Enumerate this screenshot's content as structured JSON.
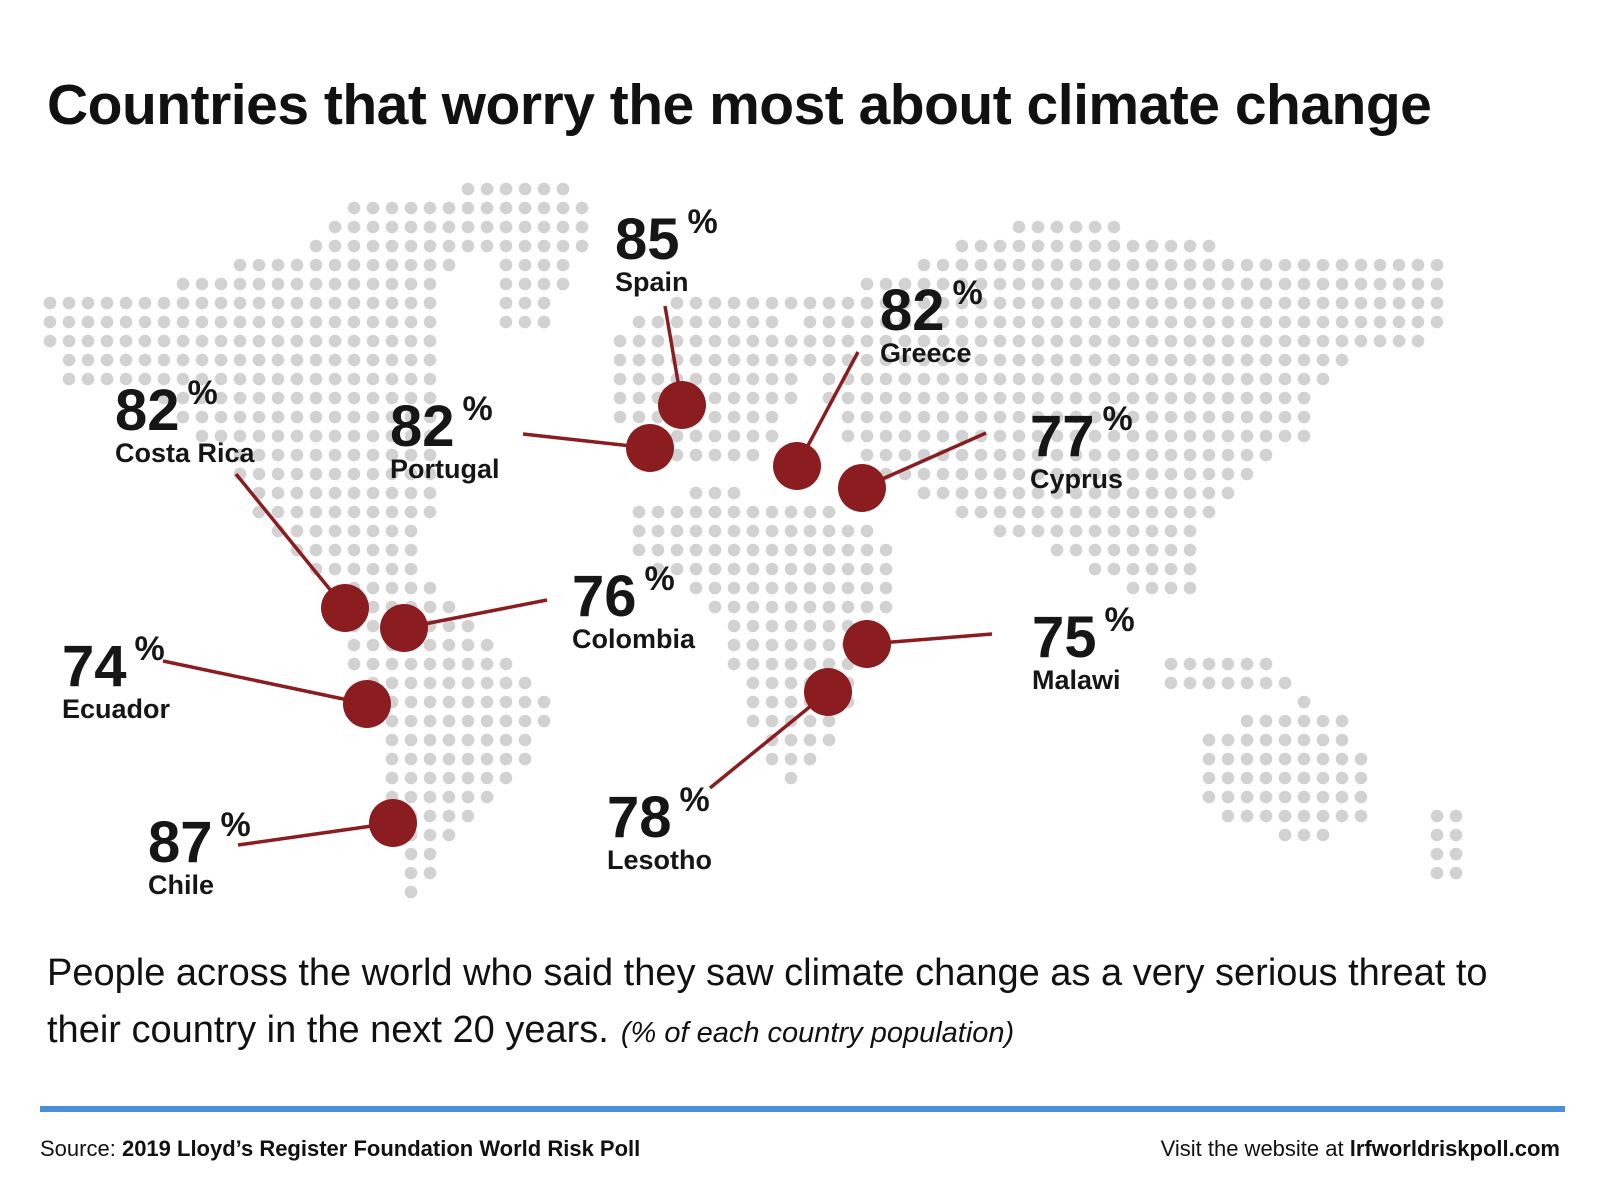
{
  "title": "Countries that worry the most about climate change",
  "colors": {
    "marker": "#8b1c20",
    "dots": "#d2d2d2",
    "rule": "#4a90d9",
    "text": "#111111"
  },
  "percent_symbol": "%",
  "markers": [
    {
      "id": "spain",
      "country": "Spain",
      "value": 85
    },
    {
      "id": "portugal",
      "country": "Portugal",
      "value": 82
    },
    {
      "id": "greece",
      "country": "Greece",
      "value": 82
    },
    {
      "id": "cyprus",
      "country": "Cyprus",
      "value": 77
    },
    {
      "id": "costa-rica",
      "country": "Costa Rica",
      "value": 82
    },
    {
      "id": "colombia",
      "country": "Colombia",
      "value": 76
    },
    {
      "id": "ecuador",
      "country": "Ecuador",
      "value": 74
    },
    {
      "id": "chile",
      "country": "Chile",
      "value": 87
    },
    {
      "id": "malawi",
      "country": "Malawi",
      "value": 75
    },
    {
      "id": "lesotho",
      "country": "Lesotho",
      "value": 78
    }
  ],
  "description": {
    "text": "People across the world who said they saw climate change as a very serious threat to their country in the next 20 years.",
    "note": "(% of each country population)"
  },
  "footer": {
    "source_label": "Source:",
    "source_name": "2019 Lloyd’s Register Foundation World Risk Poll",
    "website_label": "Visit the website at",
    "website_url": "lrfworldriskpoll.com"
  }
}
